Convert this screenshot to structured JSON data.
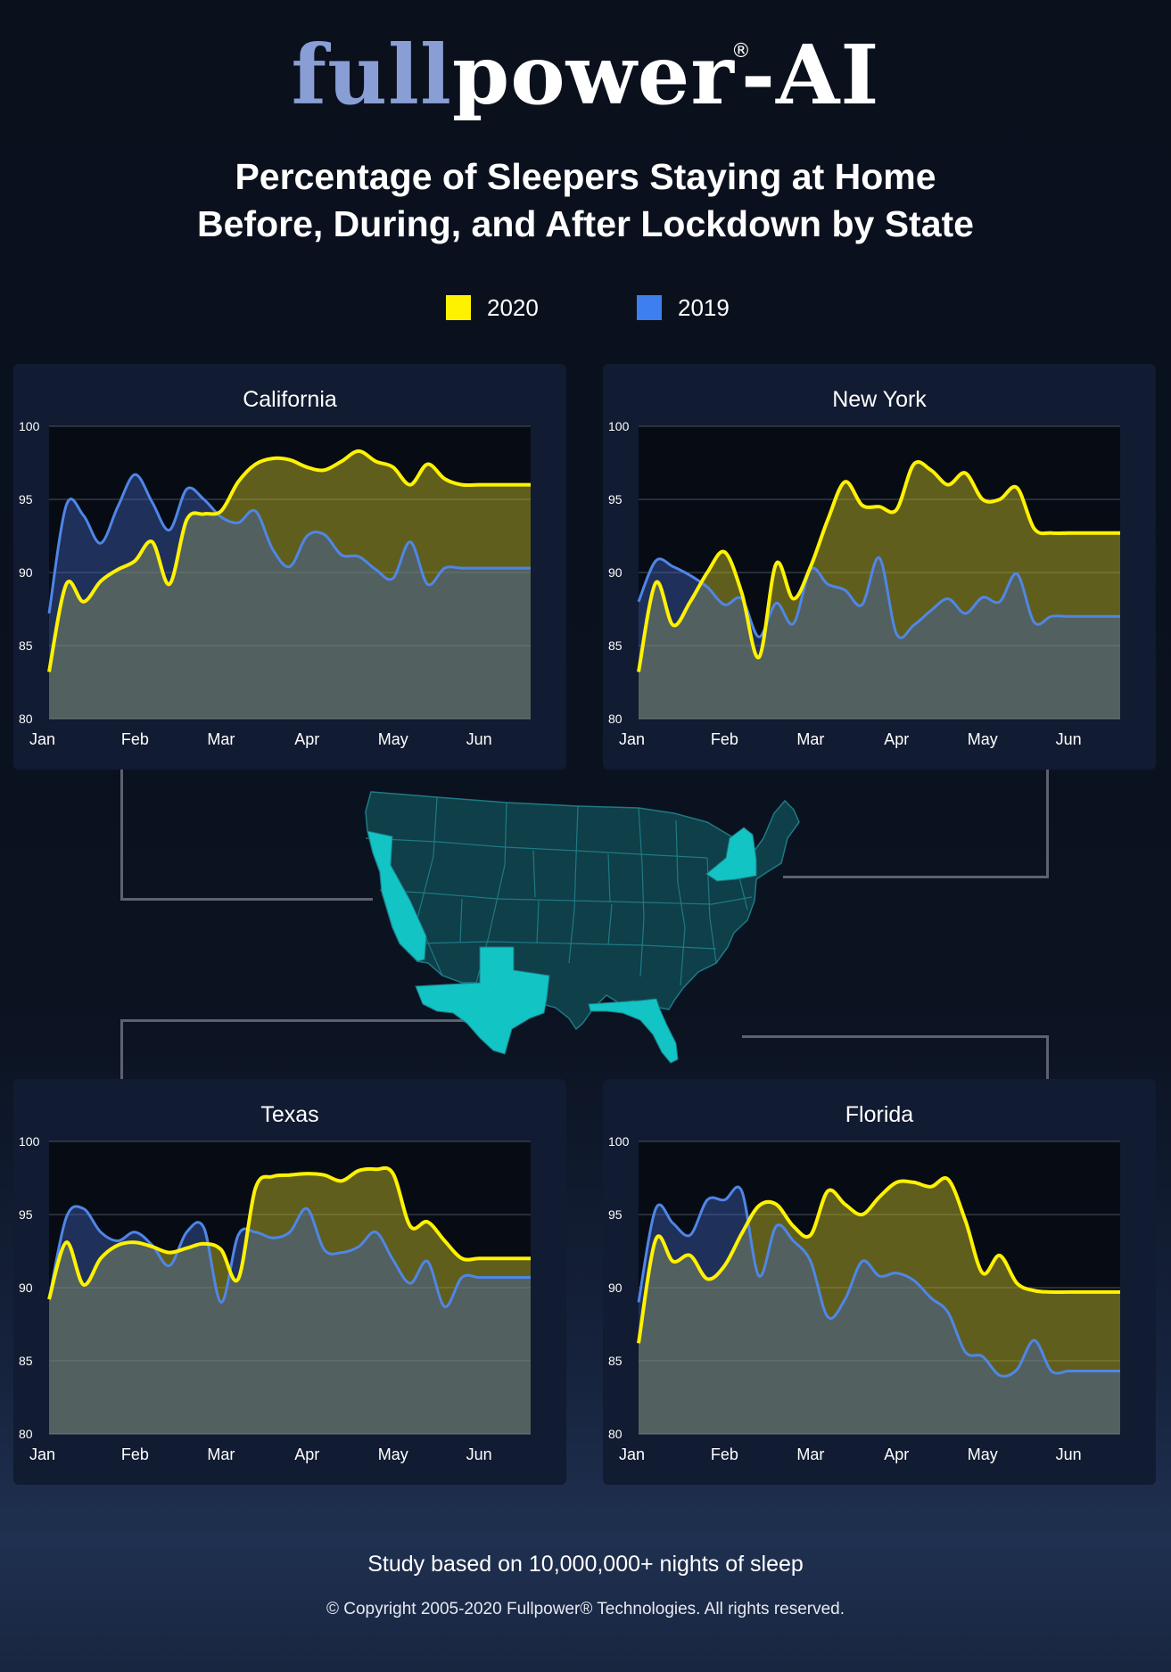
{
  "logo": {
    "full": "full",
    "power": "power",
    "reg": "®",
    "suffix": "-AI"
  },
  "title_line1": "Percentage of Sleepers Staying at Home",
  "title_line2": "Before, During, and After Lockdown by State",
  "legend": [
    {
      "label": "2020",
      "color": "#fff200"
    },
    {
      "label": "2019",
      "color": "#3d7ef0"
    }
  ],
  "footer": {
    "study": "Study based on 10,000,000+ nights of sleep",
    "copyright": "© Copyright 2005-2020 Fullpower® Technologies. All rights reserved."
  },
  "map": {
    "highlighted_states": [
      "California",
      "New York",
      "Texas",
      "Florida"
    ],
    "highlight_color": "#12c4c4",
    "base_color": "#0f3f48"
  },
  "chart_data": [
    {
      "type": "area",
      "title": "California",
      "x_tick_labels": [
        "Jan",
        "Feb",
        "Mar",
        "Apr",
        "May",
        "Jun"
      ],
      "ylim": [
        80,
        100
      ],
      "y_ticks": [
        80,
        85,
        90,
        95,
        100
      ],
      "grid": true,
      "x": [
        0,
        0.2,
        0.4,
        0.6,
        0.8,
        1.0,
        1.2,
        1.4,
        1.6,
        1.8,
        2.0,
        2.2,
        2.4,
        2.6,
        2.8,
        3.0,
        3.2,
        3.4,
        3.6,
        3.8,
        4.0,
        4.2,
        4.4,
        4.6,
        4.8,
        5.0,
        5.2,
        5.4,
        5.6
      ],
      "series": [
        {
          "name": "2020",
          "color": "#fff200",
          "values": [
            83.2,
            89.2,
            88.0,
            89.4,
            90.2,
            90.8,
            92.1,
            89.2,
            93.6,
            94.0,
            94.2,
            96.2,
            97.4,
            97.8,
            97.7,
            97.2,
            97.0,
            97.6,
            98.3,
            97.6,
            97.2,
            96.0,
            97.4,
            96.4,
            96.0,
            96.0,
            96.0,
            96.0,
            96.0
          ]
        },
        {
          "name": "2019",
          "color": "#4f86e6",
          "values": [
            87.2,
            94.6,
            93.9,
            92.0,
            94.5,
            96.7,
            94.8,
            92.9,
            95.7,
            95.0,
            93.8,
            93.4,
            94.2,
            91.6,
            90.4,
            92.5,
            92.6,
            91.2,
            91.1,
            90.2,
            89.6,
            92.1,
            89.2,
            90.3,
            90.3,
            90.3,
            90.3,
            90.3,
            90.3
          ]
        }
      ]
    },
    {
      "type": "area",
      "title": "New York",
      "x_tick_labels": [
        "Jan",
        "Feb",
        "Mar",
        "Apr",
        "May",
        "Jun"
      ],
      "ylim": [
        80,
        100
      ],
      "y_ticks": [
        80,
        85,
        90,
        95,
        100
      ],
      "grid": true,
      "x": [
        0,
        0.2,
        0.4,
        0.6,
        0.8,
        1.0,
        1.2,
        1.4,
        1.6,
        1.8,
        2.0,
        2.2,
        2.4,
        2.6,
        2.8,
        3.0,
        3.2,
        3.4,
        3.6,
        3.8,
        4.0,
        4.2,
        4.4,
        4.6,
        4.8,
        5.0,
        5.2,
        5.4,
        5.6
      ],
      "series": [
        {
          "name": "2020",
          "color": "#fff200",
          "values": [
            83.2,
            89.3,
            86.4,
            88.0,
            90.0,
            91.4,
            88.6,
            84.2,
            90.6,
            88.2,
            90.4,
            93.6,
            96.2,
            94.6,
            94.5,
            94.3,
            97.4,
            97.0,
            96.0,
            96.8,
            95.0,
            95.0,
            95.8,
            93.0,
            92.7,
            92.7,
            92.7,
            92.7,
            92.7
          ]
        },
        {
          "name": "2019",
          "color": "#4f86e6",
          "values": [
            88.0,
            90.8,
            90.4,
            89.8,
            89.0,
            87.8,
            88.2,
            85.6,
            87.9,
            86.5,
            90.2,
            89.2,
            88.8,
            87.8,
            91.0,
            85.8,
            86.4,
            87.4,
            88.2,
            87.2,
            88.3,
            88.0,
            89.9,
            86.6,
            87.0,
            87.0,
            87.0,
            87.0,
            87.0
          ]
        }
      ]
    },
    {
      "type": "area",
      "title": "Texas",
      "x_tick_labels": [
        "Jan",
        "Feb",
        "Mar",
        "Apr",
        "May",
        "Jun"
      ],
      "ylim": [
        80,
        100
      ],
      "y_ticks": [
        80,
        85,
        90,
        95,
        100
      ],
      "grid": true,
      "x": [
        0,
        0.2,
        0.4,
        0.6,
        0.8,
        1.0,
        1.2,
        1.4,
        1.6,
        1.8,
        2.0,
        2.2,
        2.4,
        2.6,
        2.8,
        3.0,
        3.2,
        3.4,
        3.6,
        3.8,
        4.0,
        4.2,
        4.4,
        4.6,
        4.8,
        5.0,
        5.2,
        5.4,
        5.6
      ],
      "series": [
        {
          "name": "2020",
          "color": "#fff200",
          "values": [
            89.2,
            93.1,
            90.2,
            92.0,
            92.9,
            93.1,
            92.8,
            92.4,
            92.7,
            93.0,
            92.6,
            90.6,
            96.8,
            97.6,
            97.7,
            97.8,
            97.7,
            97.3,
            98.0,
            98.1,
            97.8,
            94.2,
            94.5,
            93.2,
            92.0,
            92.0,
            92.0,
            92.0,
            92.0
          ]
        },
        {
          "name": "2019",
          "color": "#4f86e6",
          "values": [
            89.2,
            94.8,
            95.4,
            93.8,
            93.2,
            93.8,
            92.9,
            91.5,
            93.8,
            94.1,
            89.0,
            93.6,
            93.8,
            93.4,
            93.8,
            95.4,
            92.6,
            92.4,
            92.8,
            93.8,
            91.9,
            90.3,
            91.8,
            88.7,
            90.7,
            90.7,
            90.7,
            90.7,
            90.7
          ]
        }
      ]
    },
    {
      "type": "area",
      "title": "Florida",
      "x_tick_labels": [
        "Jan",
        "Feb",
        "Mar",
        "Apr",
        "May",
        "Jun"
      ],
      "ylim": [
        80,
        100
      ],
      "y_ticks": [
        80,
        85,
        90,
        95,
        100
      ],
      "grid": true,
      "x": [
        0,
        0.2,
        0.4,
        0.6,
        0.8,
        1.0,
        1.2,
        1.4,
        1.6,
        1.8,
        2.0,
        2.2,
        2.4,
        2.6,
        2.8,
        3.0,
        3.2,
        3.4,
        3.6,
        3.8,
        4.0,
        4.2,
        4.4,
        4.6,
        4.8,
        5.0,
        5.2,
        5.4,
        5.6
      ],
      "series": [
        {
          "name": "2020",
          "color": "#fff200",
          "values": [
            86.2,
            93.3,
            91.8,
            92.2,
            90.6,
            91.5,
            93.7,
            95.6,
            95.7,
            94.2,
            93.6,
            96.6,
            95.7,
            95.0,
            96.2,
            97.2,
            97.2,
            96.9,
            97.4,
            94.6,
            91.0,
            92.2,
            90.3,
            89.8,
            89.7,
            89.7,
            89.7,
            89.7,
            89.7
          ]
        },
        {
          "name": "2019",
          "color": "#4f86e6",
          "values": [
            89.0,
            95.4,
            94.4,
            93.6,
            96.0,
            96.0,
            96.6,
            90.8,
            94.2,
            93.2,
            91.8,
            88.0,
            89.2,
            91.8,
            90.8,
            91.0,
            90.5,
            89.3,
            88.3,
            85.6,
            85.3,
            84.0,
            84.4,
            86.4,
            84.3,
            84.3,
            84.3,
            84.3,
            84.3
          ]
        }
      ]
    }
  ]
}
